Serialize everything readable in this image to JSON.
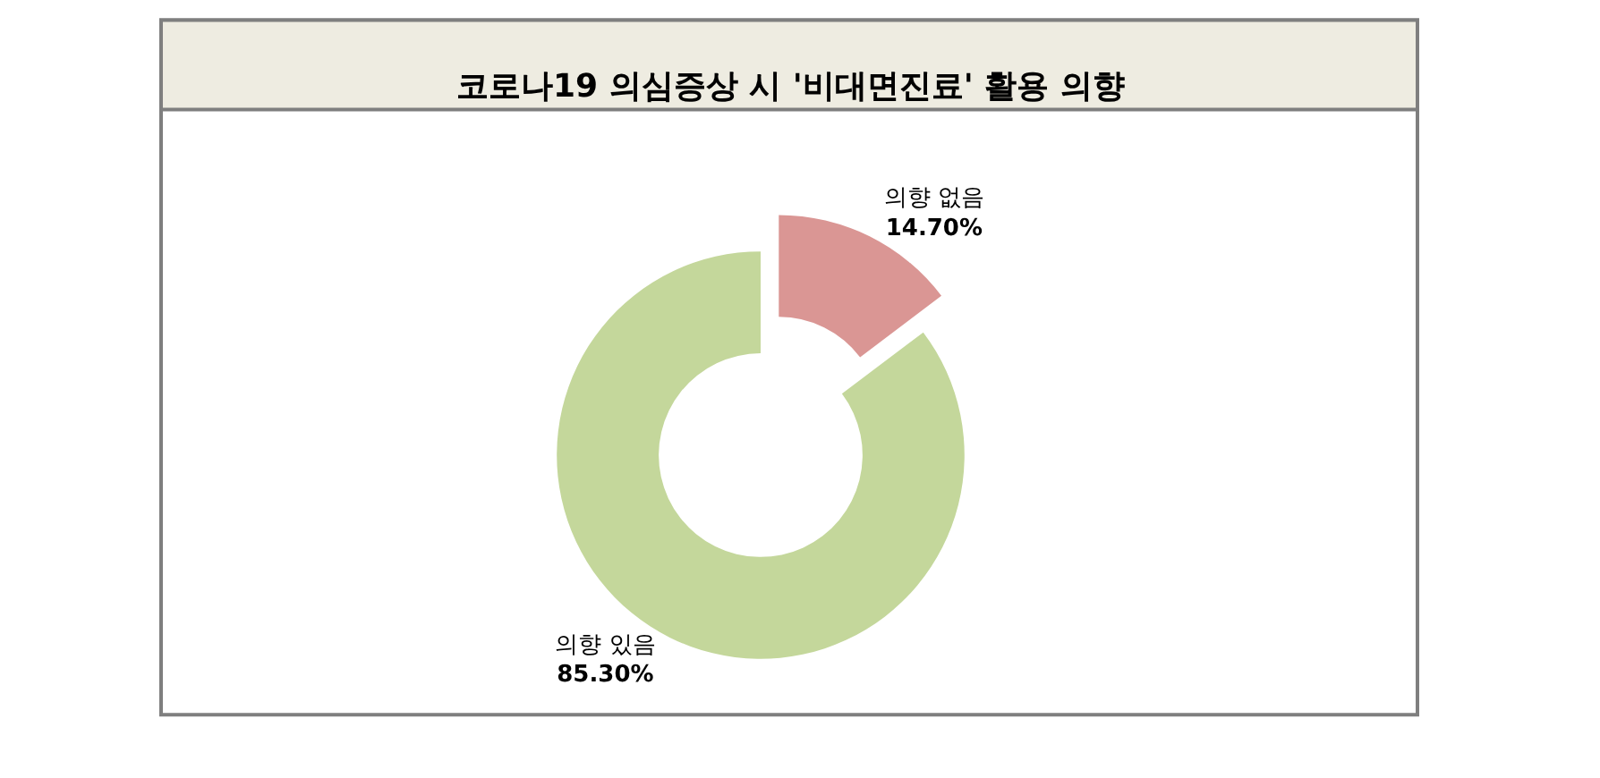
{
  "chart_data": {
    "type": "donut",
    "title": "코로나19 의심증상 시 '비대면진료' 활용 의향",
    "categories": [
      "의향 없음",
      "의향 있음"
    ],
    "values": [
      14.7,
      85.3
    ],
    "colors": [
      "#da9694",
      "#c4d79b"
    ],
    "value_labels": [
      "14.70%",
      "85.30%"
    ],
    "legend": false
  }
}
